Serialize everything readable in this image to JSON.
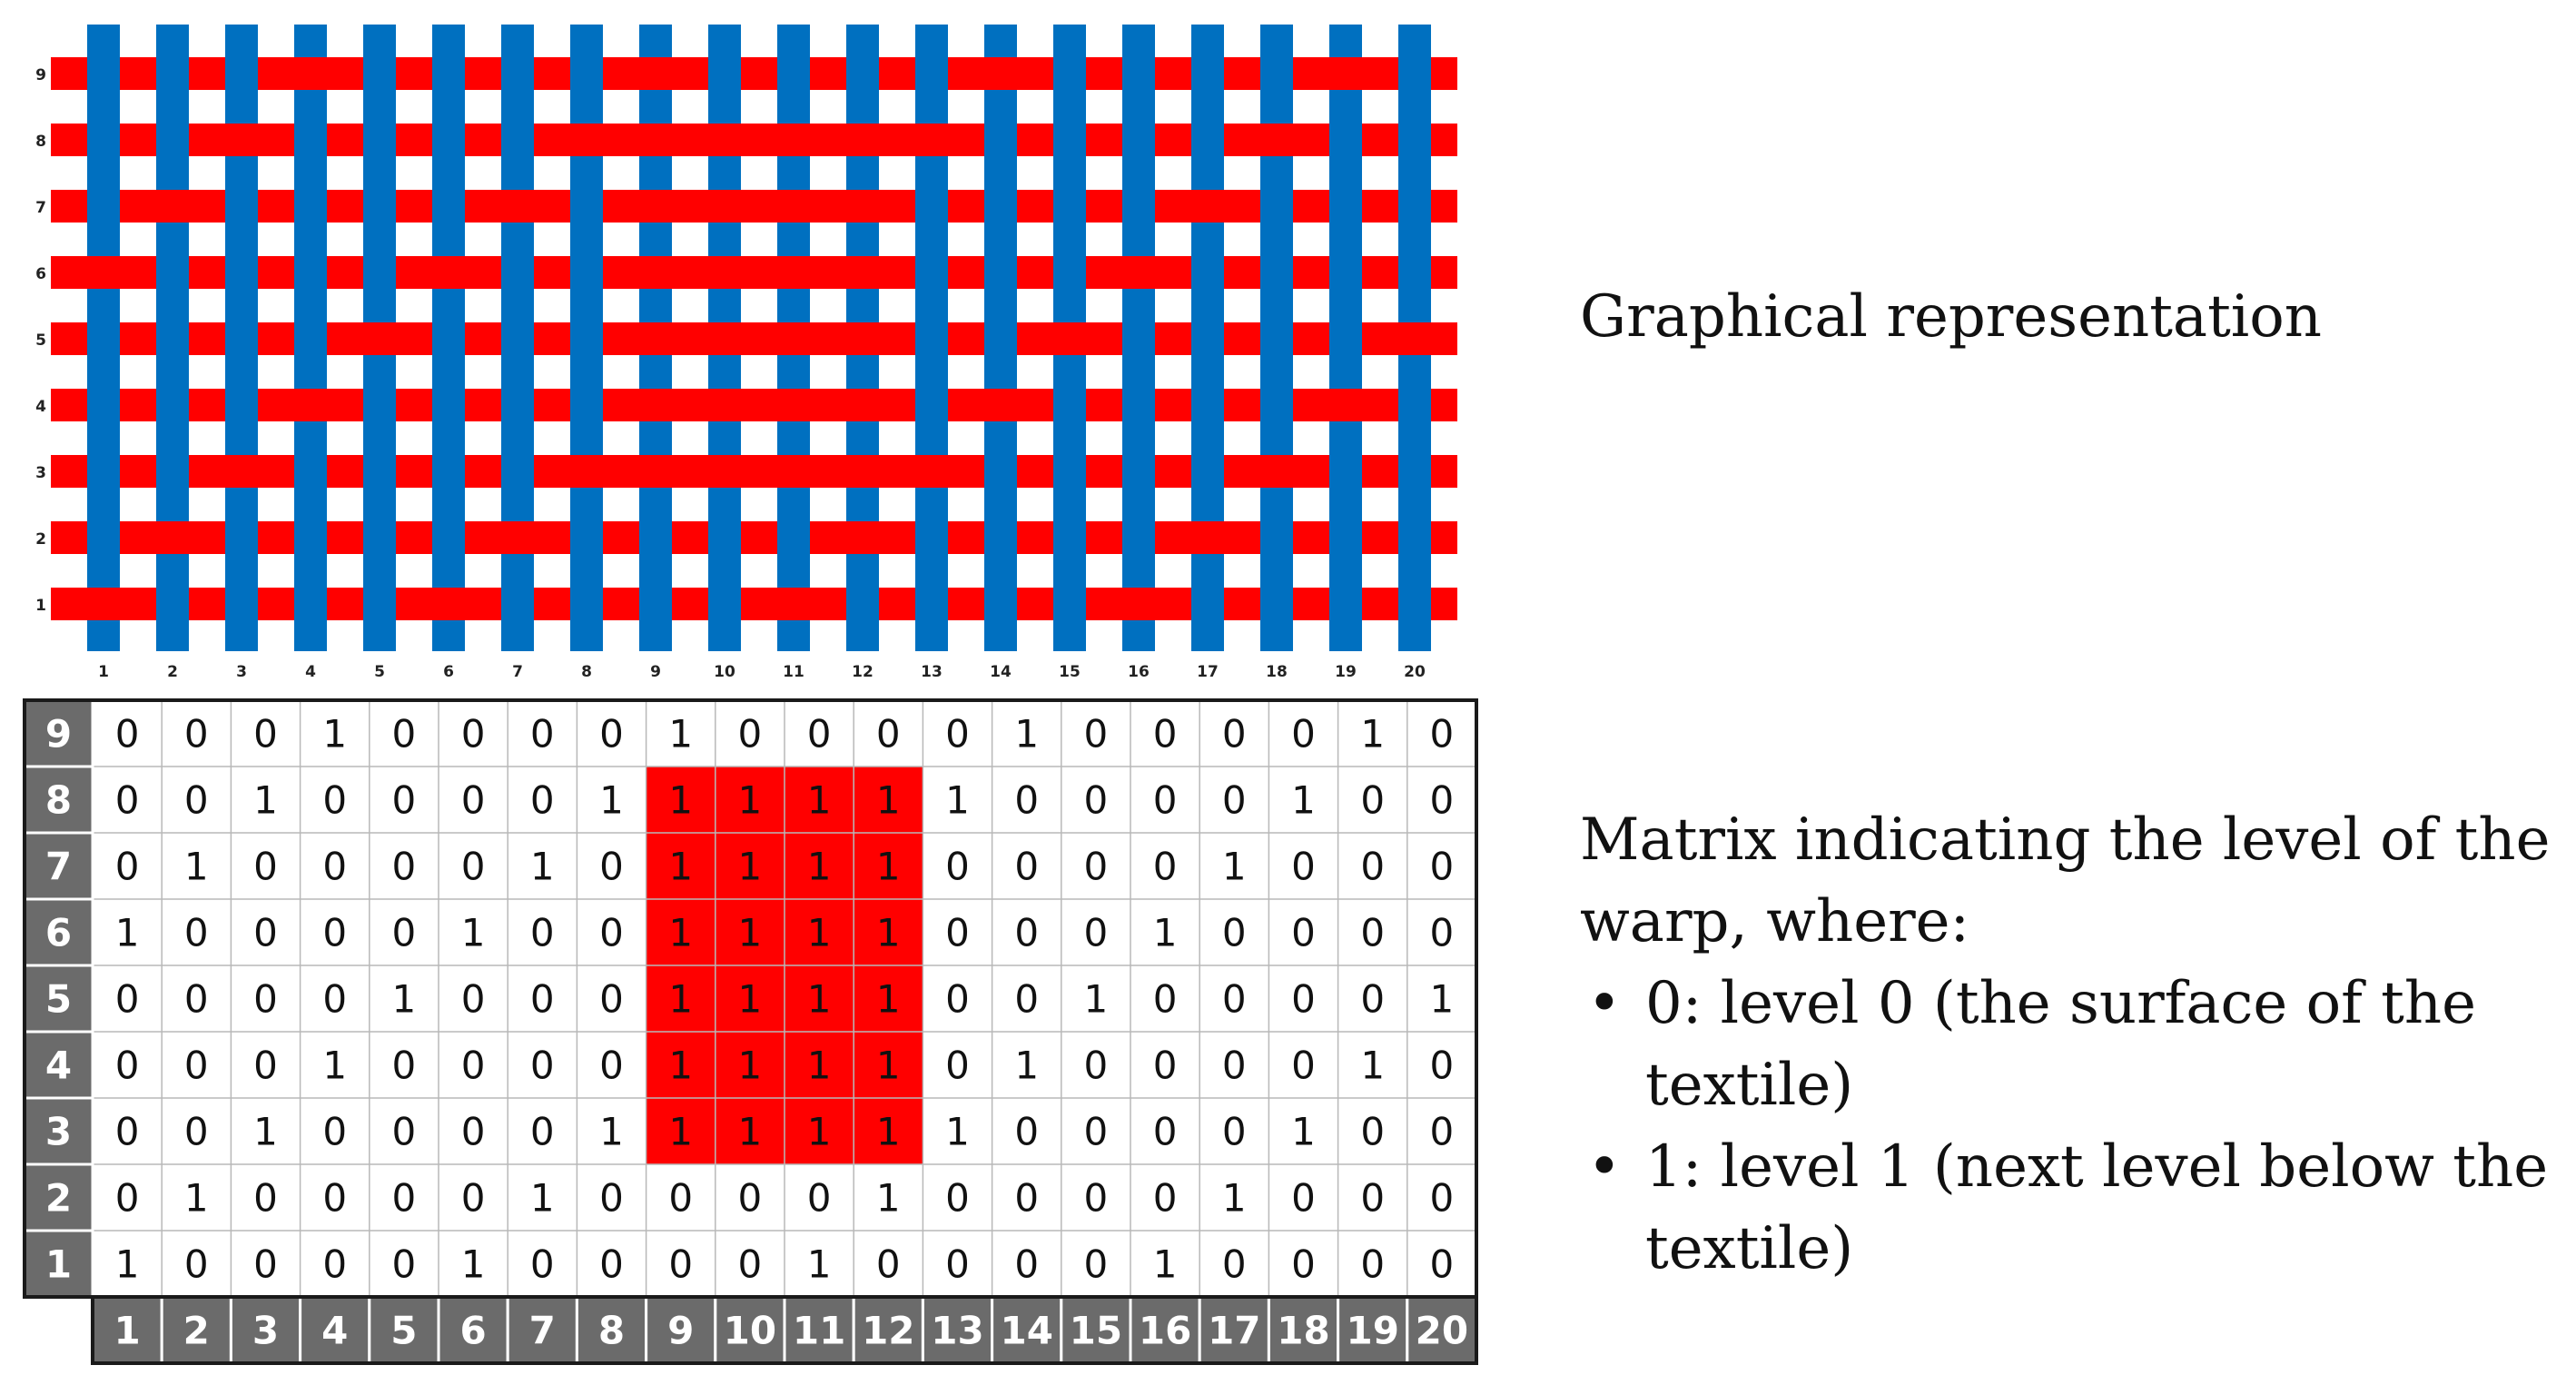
{
  "figure": {
    "graphical_label": "Graphical representation",
    "matrix_title": "Matrix indicating the level of the warp, where:",
    "legend": [
      "0: level 0 (the surface of the textile)",
      "1: level 1 (next level below the textile)"
    ]
  },
  "weave": {
    "rows": [
      "9",
      "8",
      "7",
      "6",
      "5",
      "4",
      "3",
      "2",
      "1"
    ],
    "cols": [
      "1",
      "2",
      "3",
      "4",
      "5",
      "6",
      "7",
      "8",
      "9",
      "10",
      "11",
      "12",
      "13",
      "14",
      "15",
      "16",
      "17",
      "18",
      "19",
      "20"
    ],
    "grid": [
      [
        0,
        0,
        0,
        1,
        0,
        0,
        0,
        0,
        1,
        0,
        0,
        0,
        0,
        1,
        0,
        0,
        0,
        0,
        1,
        0
      ],
      [
        0,
        0,
        1,
        0,
        0,
        0,
        0,
        1,
        1,
        1,
        1,
        1,
        1,
        0,
        0,
        0,
        0,
        1,
        0,
        0
      ],
      [
        0,
        1,
        0,
        0,
        0,
        0,
        1,
        0,
        1,
        1,
        1,
        1,
        0,
        0,
        0,
        0,
        1,
        0,
        0,
        0
      ],
      [
        1,
        0,
        0,
        0,
        0,
        1,
        0,
        0,
        1,
        1,
        1,
        1,
        0,
        0,
        0,
        1,
        0,
        0,
        0,
        0
      ],
      [
        0,
        0,
        0,
        0,
        1,
        0,
        0,
        0,
        1,
        1,
        1,
        1,
        0,
        0,
        1,
        0,
        0,
        0,
        0,
        1
      ],
      [
        0,
        0,
        0,
        1,
        0,
        0,
        0,
        0,
        1,
        1,
        1,
        1,
        0,
        1,
        0,
        0,
        0,
        0,
        1,
        0
      ],
      [
        0,
        0,
        1,
        0,
        0,
        0,
        0,
        1,
        1,
        1,
        1,
        1,
        1,
        0,
        0,
        0,
        0,
        1,
        0,
        0
      ],
      [
        0,
        1,
        0,
        0,
        0,
        0,
        1,
        0,
        0,
        0,
        0,
        1,
        0,
        0,
        0,
        0,
        1,
        0,
        0,
        0
      ],
      [
        1,
        0,
        0,
        0,
        0,
        1,
        0,
        0,
        0,
        0,
        1,
        0,
        0,
        0,
        0,
        1,
        0,
        0,
        0,
        0
      ]
    ],
    "highlight": {
      "row_labels": [
        "8",
        "7",
        "6",
        "5",
        "4",
        "3"
      ],
      "col_labels": [
        "9",
        "10",
        "11",
        "12"
      ]
    },
    "colors": {
      "weft": "#ff0000",
      "warp": "#0070c0",
      "highlight": "#ff0000",
      "header_bg": "#6b6b6b",
      "header_text": "#ffffff",
      "grid_line": "#b8b8b8",
      "border": "#1a1a1a"
    }
  }
}
